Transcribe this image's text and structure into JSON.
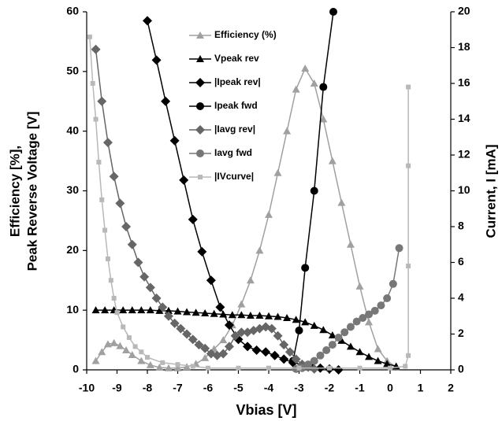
{
  "chart_data": {
    "type": "line",
    "xlabel": "Vbias [V]",
    "ylabel": [
      "Efficiency [%],",
      "Peak Reverse Voltage [V]"
    ],
    "y2label": "Current, I [mA]",
    "xlim": [
      -10,
      2
    ],
    "xticks": [
      -10,
      -9,
      -8,
      -7,
      -6,
      -5,
      -4,
      -3,
      -2,
      -1,
      0,
      1,
      2
    ],
    "ylim": [
      0,
      60
    ],
    "yticks": [
      0,
      10,
      20,
      30,
      40,
      50,
      60
    ],
    "y2lim": [
      0,
      20
    ],
    "y2ticks": [
      0,
      2,
      4,
      6,
      8,
      10,
      12,
      14,
      16,
      18,
      20
    ],
    "series": [
      {
        "name": "Efficiency (%)",
        "color": "#a0a0a0",
        "marker": "triangle",
        "axis": "y",
        "x": [
          -9.7,
          -9.5,
          -9.3,
          -9.1,
          -8.9,
          -8.7,
          -8.5,
          -8.2,
          -7.9,
          -7.6,
          -7.3,
          -7,
          -6.7,
          -6.4,
          -6.1,
          -5.8,
          -5.5,
          -5.2,
          -4.9,
          -4.6,
          -4.3,
          -4,
          -3.7,
          -3.4,
          -3.1,
          -2.8,
          -2.5,
          -2.2,
          -1.9,
          -1.6,
          -1.3,
          -1,
          -0.7,
          -0.4,
          -0.1,
          0.2
        ],
        "values": [
          1.5,
          3,
          4.3,
          4.5,
          4,
          3.3,
          2.5,
          1.5,
          0.8,
          0.4,
          0.3,
          0.3,
          0.5,
          1,
          2,
          3.5,
          5,
          7.5,
          11,
          15,
          20,
          26,
          33,
          40,
          47,
          50.5,
          48,
          42,
          35,
          28,
          21,
          14,
          8,
          3.5,
          1.5,
          0.5
        ]
      },
      {
        "name": "Vpeak rev",
        "color": "#000000",
        "marker": "triangle",
        "axis": "y",
        "x": [
          -9.7,
          -9.4,
          -9.1,
          -8.8,
          -8.5,
          -8.2,
          -7.9,
          -7.6,
          -7.3,
          -7,
          -6.7,
          -6.4,
          -6.1,
          -5.8,
          -5.5,
          -5.2,
          -4.9,
          -4.6,
          -4.3,
          -4,
          -3.7,
          -3.4,
          -3.1,
          -2.8,
          -2.5,
          -2.2,
          -1.9,
          -1.6,
          -1.3,
          -1,
          -0.7,
          -0.4,
          -0.1,
          0.2
        ],
        "values": [
          10,
          10,
          10,
          10,
          10,
          10,
          10,
          9.9,
          9.9,
          9.8,
          9.7,
          9.6,
          9.5,
          9.4,
          9.3,
          9.2,
          9.2,
          9.1,
          9.1,
          9,
          8.9,
          8.7,
          8.4,
          8,
          7.4,
          6.7,
          5.8,
          4.9,
          3.9,
          3,
          2.2,
          1.5,
          1,
          0.6
        ]
      },
      {
        "name": "|Ipeak rev|",
        "color": "#000000",
        "marker": "diamond",
        "axis": "y2",
        "x": [
          -8,
          -7.7,
          -7.4,
          -7.1,
          -6.8,
          -6.5,
          -6.2,
          -5.9,
          -5.6,
          -5.3,
          -5,
          -4.7,
          -4.4,
          -4.1,
          -3.8,
          -3.5,
          -3.2,
          -2.9,
          -2.6,
          -2.3,
          -2,
          -1.7
        ],
        "values": [
          19.5,
          17.3,
          15,
          12.8,
          10.6,
          8.4,
          6.6,
          5,
          3.5,
          2.5,
          1.7,
          1.3,
          1.1,
          1,
          0.8,
          0.6,
          0.4,
          0.3,
          0.2,
          0.1,
          0.05,
          0
        ]
      },
      {
        "name": "Ipeak fwd",
        "color": "#000000",
        "marker": "circle",
        "axis": "y2",
        "x": [
          -3.2,
          -3,
          -2.8,
          -2.5,
          -2.2,
          -1.87
        ],
        "values": [
          0.5,
          2.2,
          5.7,
          10,
          15.8,
          20
        ]
      },
      {
        "name": "|Iavg rev|",
        "color": "#666666",
        "marker": "diamond",
        "axis": "y2",
        "x": [
          -9.7,
          -9.5,
          -9.3,
          -9.1,
          -8.9,
          -8.7,
          -8.5,
          -8.3,
          -8.1,
          -7.9,
          -7.7,
          -7.5,
          -7.3,
          -7.1,
          -6.9,
          -6.7,
          -6.5,
          -6.3,
          -6.1,
          -5.9,
          -5.7,
          -5.5,
          -5.3,
          -5.1,
          -4.9,
          -4.7,
          -4.5,
          -4.3,
          -4.1,
          -3.9,
          -3.7,
          -3.5,
          -3.3,
          -3.1,
          -2.9,
          -2.7,
          -2.5
        ],
        "values": [
          17.9,
          15,
          12.7,
          10.8,
          9.3,
          8,
          7,
          6,
          5.2,
          4.6,
          4,
          3.5,
          3,
          2.6,
          2.3,
          2,
          1.7,
          1.4,
          1.2,
          0.9,
          0.8,
          0.9,
          1.3,
          1.9,
          2.1,
          2.1,
          2.2,
          2.3,
          2.4,
          2.3,
          1.9,
          1.4,
          1,
          0.6,
          0.3,
          0.15,
          0.05
        ]
      },
      {
        "name": "Iavg fwd",
        "color": "#777777",
        "marker": "circle",
        "axis": "y2",
        "x": [
          -3.1,
          -2.9,
          -2.7,
          -2.5,
          -2.3,
          -2.1,
          -1.9,
          -1.7,
          -1.5,
          -1.3,
          -1.1,
          -0.9,
          -0.7,
          -0.5,
          -0.3,
          -0.1,
          0.1,
          0.3
        ],
        "values": [
          0.05,
          0.1,
          0.3,
          0.5,
          0.8,
          1.1,
          1.4,
          1.8,
          2.1,
          2.4,
          2.7,
          2.9,
          3.1,
          3.3,
          3.6,
          4,
          4.8,
          6.8
        ]
      },
      {
        "name": "|IVcurve|",
        "color": "#b8b8b8",
        "marker": "square",
        "axis": "y2",
        "x": [
          -9.9,
          -9.8,
          -9.7,
          -9.6,
          -9.5,
          -9.4,
          -9.3,
          -9.2,
          -9.1,
          -9,
          -8.8,
          -8.6,
          -8.4,
          -8.2,
          -8,
          -7.5,
          -7,
          -6.5,
          -6,
          -5,
          -4,
          -3,
          -2,
          -1,
          0,
          0.5,
          0.6,
          0.6,
          0.6,
          0.6
        ],
        "values": [
          18.6,
          16,
          14,
          11.6,
          9.5,
          7.8,
          6.2,
          5,
          4,
          3.2,
          2.4,
          1.8,
          1.3,
          1,
          0.7,
          0.4,
          0.3,
          0.2,
          0.1,
          0.1,
          0.1,
          0.1,
          0.1,
          0.1,
          0.1,
          0.2,
          0.8,
          5.8,
          11.4,
          15.8
        ]
      }
    ]
  }
}
